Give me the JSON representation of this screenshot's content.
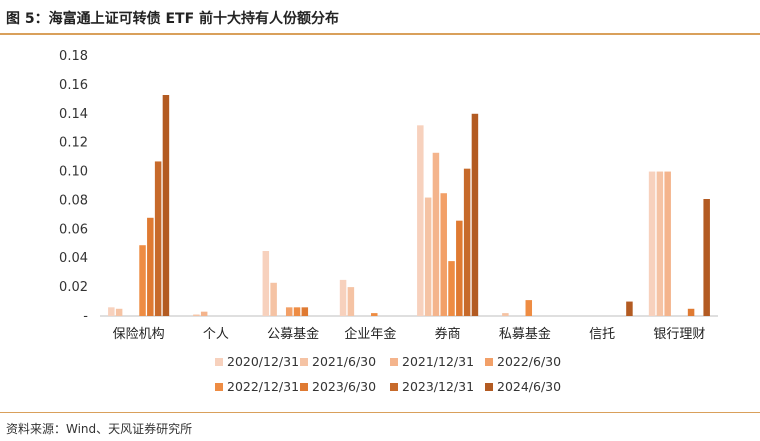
{
  "title": "图 5：海富通上证可转债 ETF 前十大持有人份额分布",
  "source": "资料来源：Wind、天风证券研究所",
  "chart_data": {
    "type": "bar",
    "categories": [
      "保险机构",
      "个人",
      "公募基金",
      "企业年金",
      "券商",
      "私募基金",
      "信托",
      "银行理财"
    ],
    "ylim": [
      0,
      0.18
    ],
    "yticks": [
      "-",
      "0.02",
      "0.04",
      "0.06",
      "0.08",
      "0.10",
      "0.12",
      "0.14",
      "0.16",
      "0.18"
    ],
    "grid": false,
    "legend_position": "bottom",
    "series": [
      {
        "name": "2020/12/31",
        "color": "#f7d1bd",
        "values": [
          0.006,
          0.0,
          0.045,
          0.025,
          0.132,
          0.0,
          0.0,
          0.1
        ]
      },
      {
        "name": "2021/6/30",
        "color": "#f5c3a4",
        "values": [
          0.005,
          0.001,
          0.023,
          0.02,
          0.082,
          0.002,
          0.0,
          0.1
        ]
      },
      {
        "name": "2021/12/31",
        "color": "#f4b48c",
        "values": [
          0.0,
          0.003,
          0.0,
          0.0,
          0.113,
          0.0,
          0.0,
          0.1
        ]
      },
      {
        "name": "2022/6/30",
        "color": "#f2a068",
        "values": [
          0.0,
          0.0,
          0.006,
          0.0,
          0.085,
          0.0,
          0.0,
          0.0
        ]
      },
      {
        "name": "2022/12/31",
        "color": "#ee8c43",
        "values": [
          0.049,
          0.0,
          0.006,
          0.002,
          0.038,
          0.011,
          0.0,
          0.0
        ]
      },
      {
        "name": "2023/6/30",
        "color": "#df7a32",
        "values": [
          0.068,
          0.0,
          0.006,
          0.0,
          0.066,
          0.0,
          0.0,
          0.005
        ]
      },
      {
        "name": "2023/12/31",
        "color": "#c76a2b",
        "values": [
          0.107,
          0.0,
          0.0,
          0.0,
          0.102,
          0.0,
          0.0,
          0.0
        ]
      },
      {
        "name": "2024/6/30",
        "color": "#b35b22",
        "values": [
          0.153,
          0.0,
          0.0,
          0.0,
          0.14,
          0.0,
          0.01,
          0.081
        ]
      }
    ]
  }
}
